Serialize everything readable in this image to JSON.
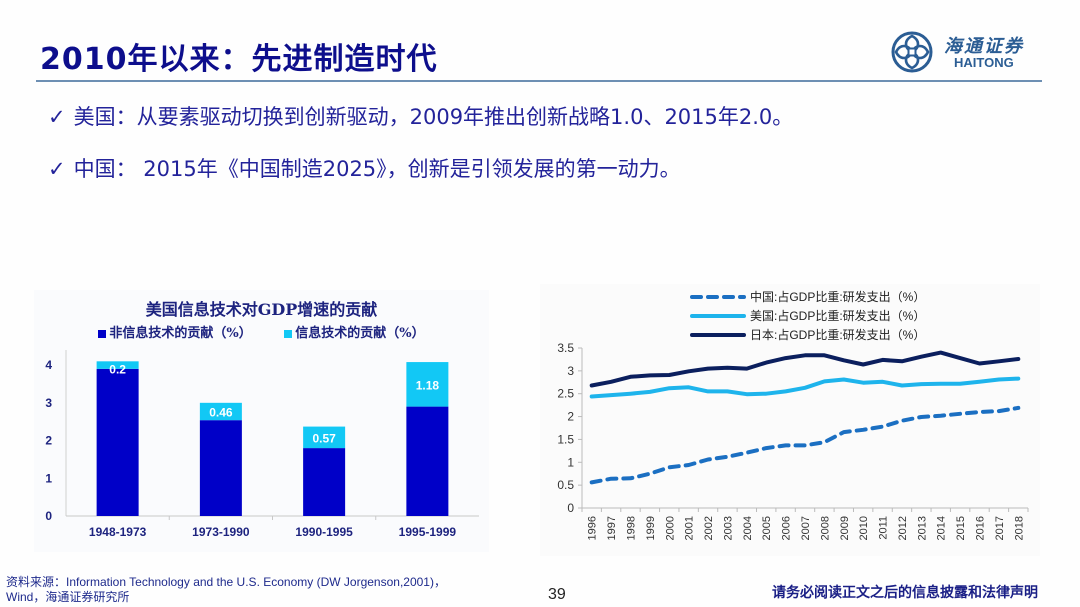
{
  "header": {
    "title": "2010年以来：先进制造时代",
    "logo_cn": "海通证券",
    "logo_en": "HAITONG"
  },
  "bullets": [
    {
      "icon": "checkmark-icon",
      "glyph": "✓",
      "text": "美国：从要素驱动切换到创新驱动，2009年推出创新战略1.0、2015年2.0。"
    },
    {
      "icon": "checkmark-icon",
      "glyph": "✓",
      "text": "中国： 2015年《中国制造2025》，创新是引领发展的第一动力。"
    }
  ],
  "colors": {
    "title": "#0d0e8c",
    "non_it": "#0000c8",
    "it": "#12c8f5",
    "china": "#1b6fc2",
    "us": "#1eb4ec",
    "japan": "#0b1f5e"
  },
  "chart_data": [
    {
      "type": "bar",
      "stacked": true,
      "title": "美国信息技术对GDP增速的贡献",
      "categories": [
        "1948-1973",
        "1973-1990",
        "1990-1995",
        "1995-1999"
      ],
      "series": [
        {
          "name": "非信息技术的贡献（%）",
          "values": [
            3.9,
            2.54,
            1.8,
            2.9
          ]
        },
        {
          "name": "信息技术的贡献（%）",
          "values": [
            0.2,
            0.46,
            0.57,
            1.18
          ]
        }
      ],
      "data_labels": [
        "0.2",
        "0.46",
        "0.57",
        "1.18"
      ],
      "ylim": [
        0,
        4.4
      ],
      "yticks": [
        "0",
        "1",
        "2",
        "3",
        "4"
      ],
      "xlabel": "",
      "ylabel": "",
      "legend": "top"
    },
    {
      "type": "line",
      "title": "",
      "x": [
        "1996",
        "1997",
        "1998",
        "1999",
        "2000",
        "2001",
        "2002",
        "2003",
        "2004",
        "2005",
        "2006",
        "2007",
        "2008",
        "2009",
        "2010",
        "2011",
        "2012",
        "2013",
        "2014",
        "2015",
        "2016",
        "2017",
        "2018"
      ],
      "series": [
        {
          "name": "中国:占GDP比重:研发支出（%）",
          "style": "dashed",
          "values": [
            0.56,
            0.64,
            0.65,
            0.75,
            0.89,
            0.94,
            1.06,
            1.12,
            1.21,
            1.31,
            1.37,
            1.37,
            1.44,
            1.66,
            1.71,
            1.78,
            1.91,
            1.99,
            2.02,
            2.06,
            2.1,
            2.12,
            2.19
          ]
        },
        {
          "name": "美国:占GDP比重:研发支出（%）",
          "style": "solid",
          "values": [
            2.44,
            2.47,
            2.5,
            2.54,
            2.62,
            2.64,
            2.55,
            2.55,
            2.49,
            2.5,
            2.55,
            2.63,
            2.77,
            2.81,
            2.74,
            2.76,
            2.68,
            2.71,
            2.72,
            2.72,
            2.76,
            2.81,
            2.83
          ]
        },
        {
          "name": "日本:占GDP比重:研发支出（%）",
          "style": "solid",
          "values": [
            2.68,
            2.76,
            2.87,
            2.9,
            2.91,
            2.99,
            3.05,
            3.07,
            3.05,
            3.18,
            3.28,
            3.34,
            3.34,
            3.23,
            3.14,
            3.24,
            3.21,
            3.31,
            3.4,
            3.28,
            3.16,
            3.21,
            3.26
          ]
        }
      ],
      "ylim": [
        0,
        3.5
      ],
      "yticks": [
        "0",
        "0.5",
        "1",
        "1.5",
        "2",
        "2.5",
        "3",
        "3.5"
      ],
      "xlabel": "",
      "ylabel": "",
      "legend": "top"
    }
  ],
  "footer": {
    "source_line1": "资料来源：Information Technology and the U.S. Economy (DW Jorgenson,2001)，",
    "source_line2": "Wind，海通证券研究所",
    "page_number": "39",
    "disclaimer": "请务必阅读正文之后的信息披露和法律声明"
  }
}
